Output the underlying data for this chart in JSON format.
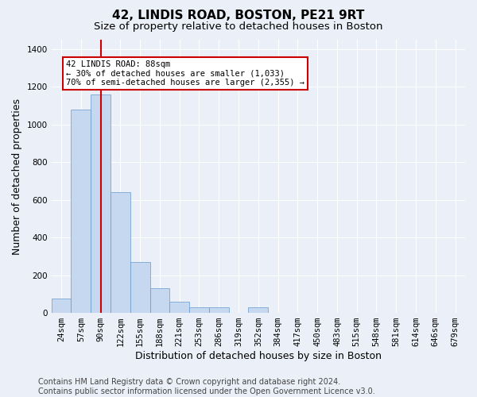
{
  "title": "42, LINDIS ROAD, BOSTON, PE21 9RT",
  "subtitle": "Size of property relative to detached houses in Boston",
  "xlabel": "Distribution of detached houses by size in Boston",
  "ylabel": "Number of detached properties",
  "footer_line1": "Contains HM Land Registry data © Crown copyright and database right 2024.",
  "footer_line2": "Contains public sector information licensed under the Open Government Licence v3.0.",
  "annotation_line1": "42 LINDIS ROAD: 88sqm",
  "annotation_line2": "← 30% of detached houses are smaller (1,033)",
  "annotation_line3": "70% of semi-detached houses are larger (2,355) →",
  "bar_color": "#c5d8f0",
  "bar_edge_color": "#6699cc",
  "red_line_x": 2,
  "categories": [
    "24sqm",
    "57sqm",
    "90sqm",
    "122sqm",
    "155sqm",
    "188sqm",
    "221sqm",
    "253sqm",
    "286sqm",
    "319sqm",
    "352sqm",
    "384sqm",
    "417sqm",
    "450sqm",
    "483sqm",
    "515sqm",
    "548sqm",
    "581sqm",
    "614sqm",
    "646sqm",
    "679sqm"
  ],
  "values": [
    75,
    1080,
    1160,
    640,
    270,
    130,
    60,
    30,
    30,
    0,
    30,
    0,
    0,
    0,
    0,
    0,
    0,
    0,
    0,
    0,
    0
  ],
  "ylim": [
    0,
    1450
  ],
  "yticks": [
    0,
    200,
    400,
    600,
    800,
    1000,
    1200,
    1400
  ],
  "background_color": "#eaeff8",
  "grid_color": "#ffffff",
  "annotation_box_facecolor": "#ffffff",
  "annotation_box_edgecolor": "#cc0000",
  "title_fontsize": 11,
  "subtitle_fontsize": 9.5,
  "axis_label_fontsize": 9,
  "tick_fontsize": 7.5,
  "footer_fontsize": 7
}
